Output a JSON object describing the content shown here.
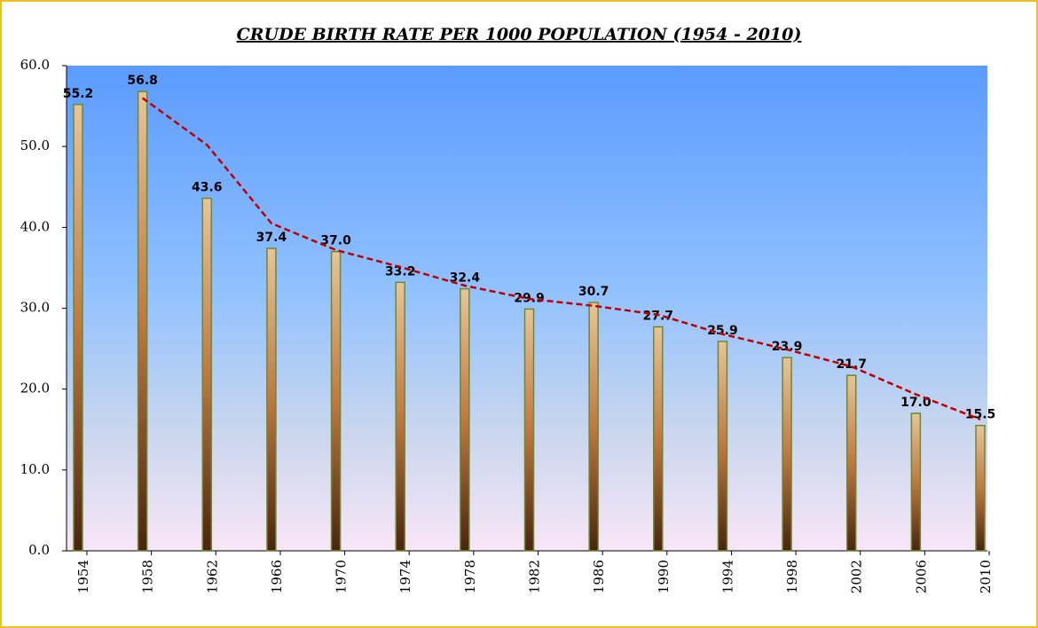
{
  "chart_data": {
    "type": "bar",
    "title": "CRUDE BIRTH RATE PER 1000 POPULATION (1954 - 2010)",
    "categories": [
      "1954",
      "1958",
      "1962",
      "1966",
      "1970",
      "1974",
      "1978",
      "1982",
      "1986",
      "1990",
      "1994",
      "1998",
      "2002",
      "2006",
      "2010"
    ],
    "series": [
      {
        "type": "bar",
        "color": "#c8925a",
        "values": [
          55.2,
          56.8,
          43.6,
          37.4,
          37.0,
          33.2,
          32.4,
          29.9,
          30.7,
          27.7,
          25.9,
          23.9,
          21.7,
          17.0,
          15.5
        ],
        "value_labels": [
          "55.2",
          "56.8",
          "43.6",
          "37.4",
          "37.0",
          "33.2",
          "32.4",
          "29.9",
          "30.7",
          "27.7",
          "25.9",
          "23.9",
          "21.7",
          "17.0",
          "15.5"
        ]
      },
      {
        "type": "line",
        "color": "#c00000",
        "values": [
          null,
          56.0,
          50.2,
          40.5,
          37.2,
          35.1,
          32.8,
          31.15,
          30.3,
          29.2,
          26.8,
          24.9,
          22.8,
          19.35,
          16.25
        ]
      }
    ],
    "ylim": [
      0,
      60
    ],
    "yticks": [
      {
        "value": 0,
        "label": "0.0"
      },
      {
        "value": 10,
        "label": "10.0"
      },
      {
        "value": 20,
        "label": "20.0"
      },
      {
        "value": 30,
        "label": "30.0"
      },
      {
        "value": 40,
        "label": "40.0"
      },
      {
        "value": 50,
        "label": "50.0"
      },
      {
        "value": 60,
        "label": "60.0"
      }
    ]
  }
}
